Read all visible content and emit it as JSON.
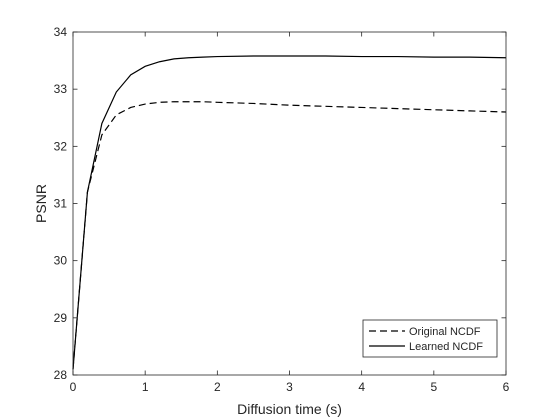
{
  "chart_data": {
    "type": "line",
    "xlabel": "Diffusion time (s)",
    "ylabel": "PSNR",
    "xlim": [
      0,
      6
    ],
    "ylim": [
      28,
      34
    ],
    "xticks": [
      0,
      1,
      2,
      3,
      4,
      5,
      6
    ],
    "yticks": [
      28,
      29,
      30,
      31,
      32,
      33,
      34
    ],
    "xtick_labels": [
      "0",
      "1",
      "2",
      "3",
      "4",
      "5",
      "6"
    ],
    "ytick_labels": [
      "28",
      "29",
      "30",
      "31",
      "32",
      "33",
      "34"
    ],
    "grid": false,
    "legend_position": "bottom-right",
    "series": [
      {
        "name": "Original NCDF",
        "style": "dashed",
        "color": "#000000",
        "x": [
          0,
          0.2,
          0.4,
          0.6,
          0.8,
          1.0,
          1.2,
          1.4,
          1.6,
          1.8,
          2.0,
          2.5,
          3.0,
          3.5,
          4.0,
          4.5,
          5.0,
          5.5,
          6.0
        ],
        "y": [
          28.1,
          31.2,
          32.2,
          32.55,
          32.68,
          32.74,
          32.77,
          32.78,
          32.78,
          32.78,
          32.77,
          32.75,
          32.72,
          32.7,
          32.68,
          32.66,
          32.64,
          32.62,
          32.6
        ]
      },
      {
        "name": "Learned NCDF",
        "style": "solid",
        "color": "#000000",
        "x": [
          0,
          0.2,
          0.4,
          0.6,
          0.8,
          1.0,
          1.2,
          1.4,
          1.6,
          1.8,
          2.0,
          2.5,
          3.0,
          3.5,
          4.0,
          4.5,
          5.0,
          5.5,
          6.0
        ],
        "y": [
          28.1,
          31.2,
          32.4,
          32.95,
          33.25,
          33.4,
          33.48,
          33.53,
          33.55,
          33.56,
          33.57,
          33.58,
          33.58,
          33.58,
          33.57,
          33.57,
          33.56,
          33.56,
          33.55
        ]
      }
    ]
  }
}
